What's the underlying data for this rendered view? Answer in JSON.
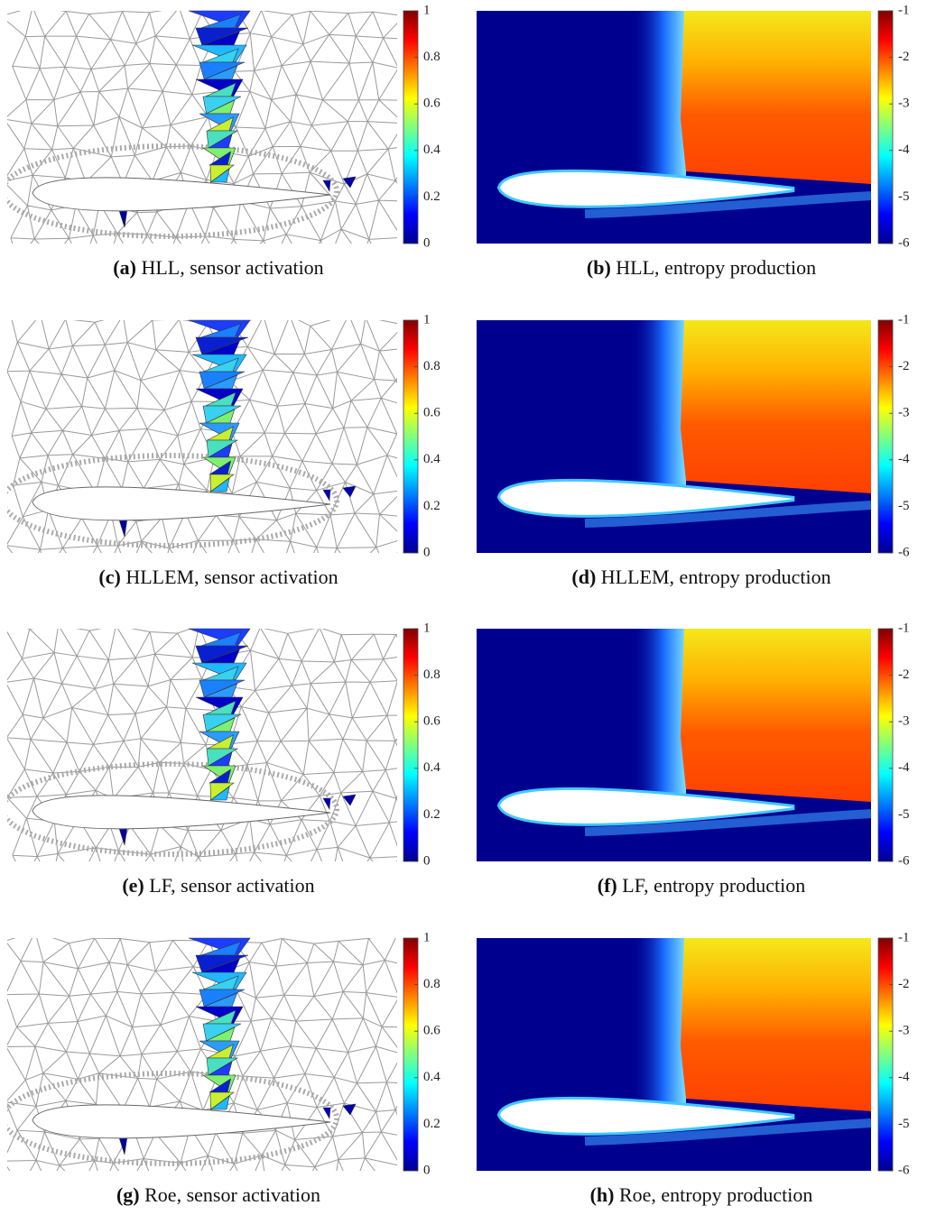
{
  "panels": [
    {
      "label": "(a)",
      "caption": "HLL, sensor activation",
      "colorbar": {
        "lim": [
          0,
          1
        ],
        "ticks": [
          0,
          0.2,
          0.4,
          0.6,
          0.8,
          1
        ]
      }
    },
    {
      "label": "(b)",
      "caption": "HLL, entropy production",
      "colorbar": {
        "lim": [
          -6,
          -1
        ],
        "ticks": [
          -6,
          -5,
          -4,
          -3,
          -2,
          -1
        ]
      }
    },
    {
      "label": "(c)",
      "caption": "HLLEM, sensor activation",
      "colorbar": {
        "lim": [
          0,
          1
        ],
        "ticks": [
          0,
          0.2,
          0.4,
          0.6,
          0.8,
          1
        ]
      }
    },
    {
      "label": "(d)",
      "caption": "HLLEM, entropy production",
      "colorbar": {
        "lim": [
          -6,
          -1
        ],
        "ticks": [
          -6,
          -5,
          -4,
          -3,
          -2,
          -1
        ]
      }
    },
    {
      "label": "(e)",
      "caption": "LF, sensor activation",
      "colorbar": {
        "lim": [
          0,
          1
        ],
        "ticks": [
          0,
          0.2,
          0.4,
          0.6,
          0.8,
          1
        ]
      }
    },
    {
      "label": "(f)",
      "caption": "LF, entropy production",
      "colorbar": {
        "lim": [
          -6,
          -1
        ],
        "ticks": [
          -6,
          -5,
          -4,
          -3,
          -2,
          -1
        ]
      }
    },
    {
      "label": "(g)",
      "caption": "Roe, sensor activation",
      "colorbar": {
        "lim": [
          0,
          1
        ],
        "ticks": [
          0,
          0.2,
          0.4,
          0.6,
          0.8,
          1
        ]
      }
    },
    {
      "label": "(h)",
      "caption": "Roe, entropy production",
      "colorbar": {
        "lim": [
          -6,
          -1
        ],
        "ticks": [
          -6,
          -5,
          -4,
          -3,
          -2,
          -1
        ]
      }
    }
  ]
}
